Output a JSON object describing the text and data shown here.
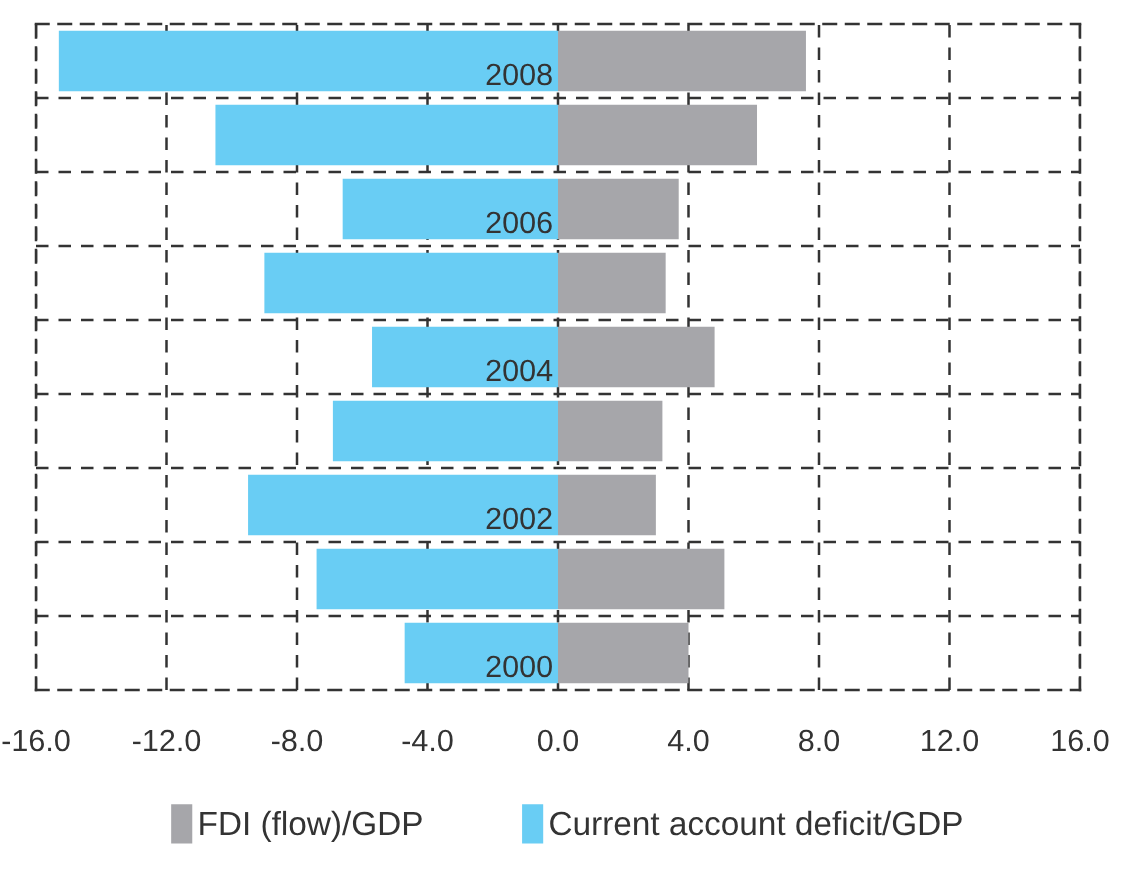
{
  "chart_data": {
    "type": "bar",
    "orientation": "horizontal",
    "categories": [
      "2008",
      null,
      "2006",
      null,
      "2004",
      null,
      "2002",
      null,
      "2000"
    ],
    "series": [
      {
        "name": "FDI (flow)/GDP",
        "color": "#a6a6aa",
        "values": [
          7.6,
          6.1,
          3.7,
          3.3,
          4.8,
          3.2,
          3.0,
          5.1,
          4.0
        ]
      },
      {
        "name": "Current account deficit/GDP",
        "color": "#69cdf4",
        "values": [
          -15.3,
          -10.5,
          -6.6,
          -9.0,
          -5.7,
          -6.9,
          -9.5,
          -7.4,
          -4.7
        ]
      }
    ],
    "xlim": [
      -16,
      16
    ],
    "xticks": [
      {
        "value": -16,
        "label": "-16.0"
      },
      {
        "value": -12,
        "label": "-12.0"
      },
      {
        "value": -8,
        "label": "-8.0"
      },
      {
        "value": -4,
        "label": "-4.0"
      },
      {
        "value": 0,
        "label": "0.0"
      },
      {
        "value": 4,
        "label": "4.0"
      },
      {
        "value": 8,
        "label": "8.0"
      },
      {
        "value": 12,
        "label": "12.0"
      },
      {
        "value": 16,
        "label": "16.0"
      }
    ],
    "stacked": true,
    "grid": true,
    "legend": "bottom"
  }
}
